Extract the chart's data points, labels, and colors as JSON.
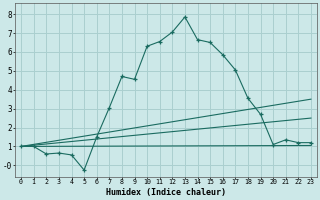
{
  "xlabel": "Humidex (Indice chaleur)",
  "bg_color": "#cce8e8",
  "grid_color": "#aacfcf",
  "line_color": "#1a6b60",
  "xlim": [
    -0.5,
    23.5
  ],
  "ylim": [
    -0.6,
    8.6
  ],
  "xticks": [
    0,
    1,
    2,
    3,
    4,
    5,
    6,
    7,
    8,
    9,
    10,
    11,
    12,
    13,
    14,
    15,
    16,
    17,
    18,
    19,
    20,
    21,
    22,
    23
  ],
  "yticks": [
    0,
    1,
    2,
    3,
    4,
    5,
    6,
    7,
    8
  ],
  "ytick_labels": [
    "-0",
    "1",
    "2",
    "3",
    "4",
    "5",
    "6",
    "7",
    "8"
  ],
  "line1_x": [
    0,
    1,
    2,
    3,
    4,
    5,
    6,
    7,
    8,
    9,
    10,
    11,
    12,
    13,
    14,
    15,
    16,
    17,
    18,
    19,
    20,
    21,
    22,
    23
  ],
  "line1_y": [
    1.0,
    1.0,
    0.6,
    0.65,
    0.55,
    -0.25,
    1.5,
    3.05,
    4.7,
    4.55,
    6.3,
    6.55,
    7.05,
    7.85,
    6.65,
    6.5,
    5.85,
    5.05,
    3.55,
    2.7,
    1.1,
    1.35,
    1.2,
    1.2
  ],
  "line2_x": [
    0,
    23
  ],
  "line2_y": [
    1.0,
    1.05
  ],
  "line3_x": [
    0,
    23
  ],
  "line3_y": [
    1.0,
    2.5
  ],
  "line4_x": [
    0,
    23
  ],
  "line4_y": [
    1.0,
    3.5
  ]
}
